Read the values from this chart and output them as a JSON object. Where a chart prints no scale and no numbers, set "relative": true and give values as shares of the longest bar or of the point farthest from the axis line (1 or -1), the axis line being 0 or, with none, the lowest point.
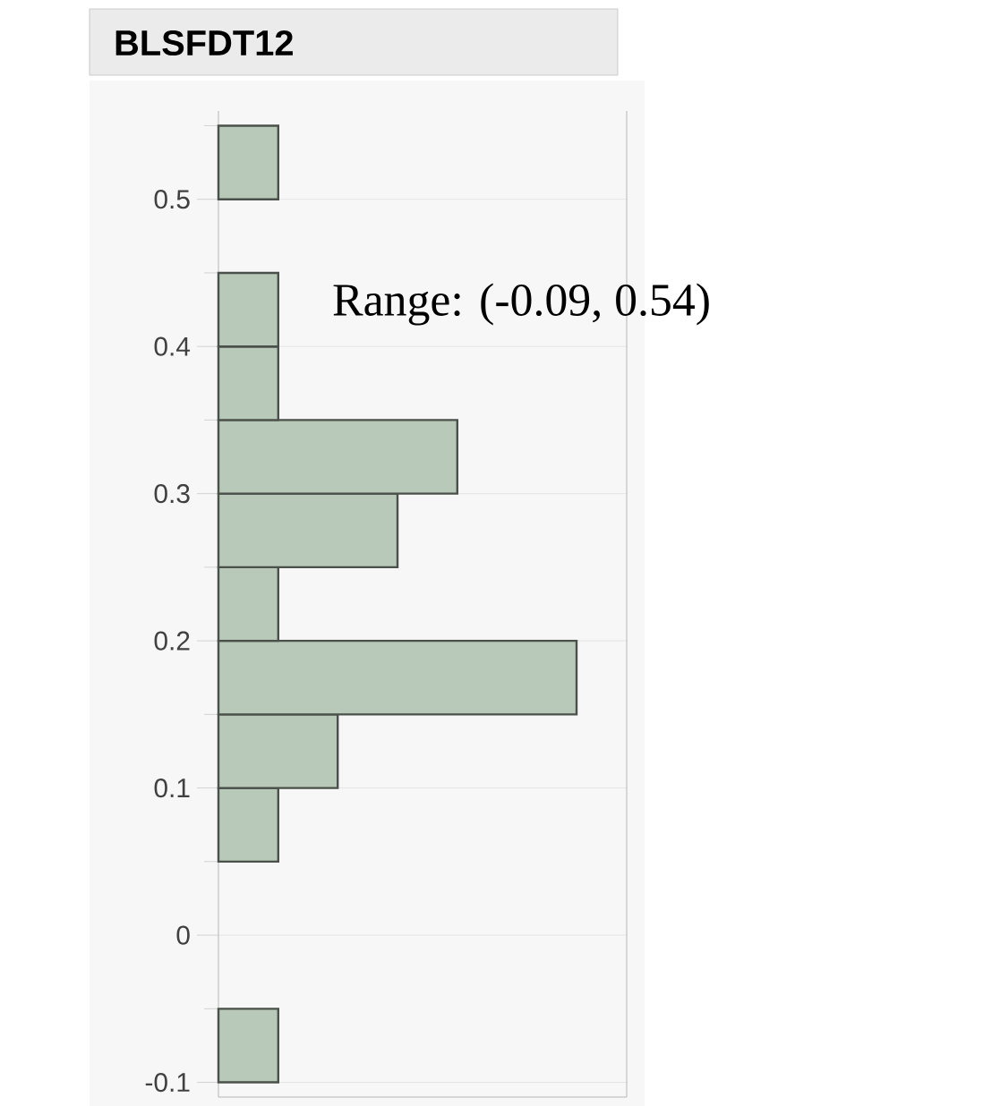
{
  "chart_data": {
    "type": "bar",
    "orientation": "horizontal",
    "relative": true,
    "title": "BLSFDT12",
    "annotations": [
      "Range: (-0.09, 0.54)"
    ],
    "x": [
      -0.075,
      -0.025,
      0.025,
      0.075,
      0.125,
      0.175,
      0.225,
      0.275,
      0.325,
      0.375,
      0.425,
      0.475,
      0.525
    ],
    "values": [
      0.167,
      0,
      0,
      0.167,
      0.333,
      1,
      0.167,
      0.5,
      0.667,
      0.167,
      0.167,
      0,
      0.167
    ],
    "color": "#b9c9b9",
    "ylim": [
      -0.11,
      0.56
    ],
    "yticks": [
      -0.1,
      {
        "value": -0.05,
        "label": null
      },
      0,
      {
        "value": 0.05,
        "label": null
      },
      0.1,
      {
        "value": 0.15,
        "label": null
      },
      0.2,
      {
        "value": 0.25,
        "label": null
      },
      0.3,
      {
        "value": 0.35,
        "label": null
      },
      0.4,
      {
        "value": 0.45,
        "label": null
      },
      0.5,
      {
        "value": 0.55,
        "label": null
      }
    ],
    "grid": "y",
    "tick_labels": "y"
  }
}
